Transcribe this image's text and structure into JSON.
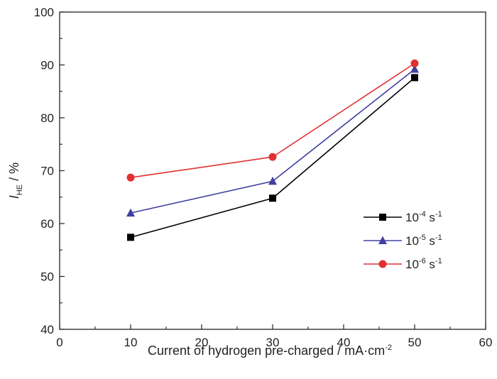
{
  "chart_data": {
    "type": "line",
    "xlabel": "Current of hydrogen pre-charged / mA·cm",
    "xlabel_superscript": "-2",
    "ylabel_symbol": "I",
    "ylabel_subscript": "HE",
    "ylabel_unit": " / %",
    "xlim": [
      0,
      60
    ],
    "ylim": [
      40,
      100
    ],
    "xticks": [
      0,
      10,
      20,
      30,
      40,
      50,
      60
    ],
    "yticks": [
      40,
      50,
      60,
      70,
      80,
      90,
      100
    ],
    "grid": false,
    "legend_position": "center-right",
    "x": [
      10,
      30,
      50
    ],
    "series": [
      {
        "name_base": "10",
        "name_exp": "-4",
        "name_unit": " s",
        "name_unit_exp": "-1",
        "marker": "square",
        "color": "#000000",
        "values": [
          57.4,
          64.8,
          87.6
        ]
      },
      {
        "name_base": "10",
        "name_exp": "-5",
        "name_unit": " s",
        "name_unit_exp": "-1",
        "marker": "triangle",
        "color": "#4040a0",
        "values": [
          62.0,
          68.0,
          89.2
        ]
      },
      {
        "name_base": "10",
        "name_exp": "-6",
        "name_unit": " s",
        "name_unit_exp": "-1",
        "marker": "circle",
        "color": "#e03030",
        "values": [
          68.7,
          72.6,
          90.3
        ]
      }
    ]
  }
}
